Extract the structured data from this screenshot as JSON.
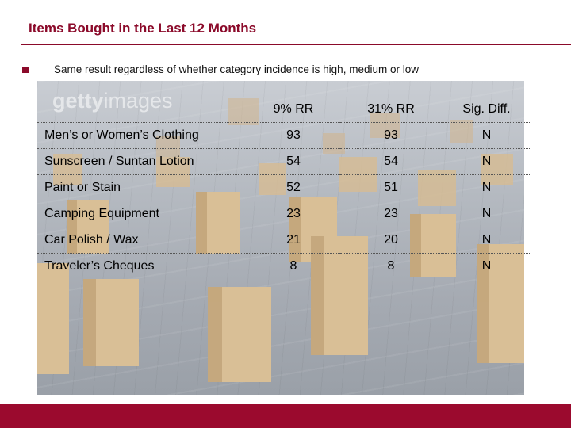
{
  "slide": {
    "title": "Items Bought in the Last 12 Months",
    "subtitle": "Same result regardless of whether category incidence is high, medium or low"
  },
  "watermark": {
    "part1": "getty",
    "part2": "images"
  },
  "table": {
    "headers": [
      "",
      "9% RR",
      "31% RR",
      "Sig. Diff."
    ],
    "rows": [
      {
        "item": "Men’s or Women’s Clothing",
        "rr9": "93",
        "rr31": "93",
        "sig": "N"
      },
      {
        "item": "Sunscreen / Suntan Lotion",
        "rr9": "54",
        "rr31": "54",
        "sig": "N"
      },
      {
        "item": "Paint or Stain",
        "rr9": "52",
        "rr31": "51",
        "sig": "N"
      },
      {
        "item": "Camping Equipment",
        "rr9": "23",
        "rr31": "23",
        "sig": "N"
      },
      {
        "item": "Car Polish / Wax",
        "rr9": "21",
        "rr31": "20",
        "sig": "N"
      },
      {
        "item": "Traveler’s Cheques",
        "rr9": "8",
        "rr31": "8",
        "sig": "N"
      }
    ]
  },
  "colors": {
    "accent": "#8b0a2a",
    "footer": "#9b0a2e"
  }
}
